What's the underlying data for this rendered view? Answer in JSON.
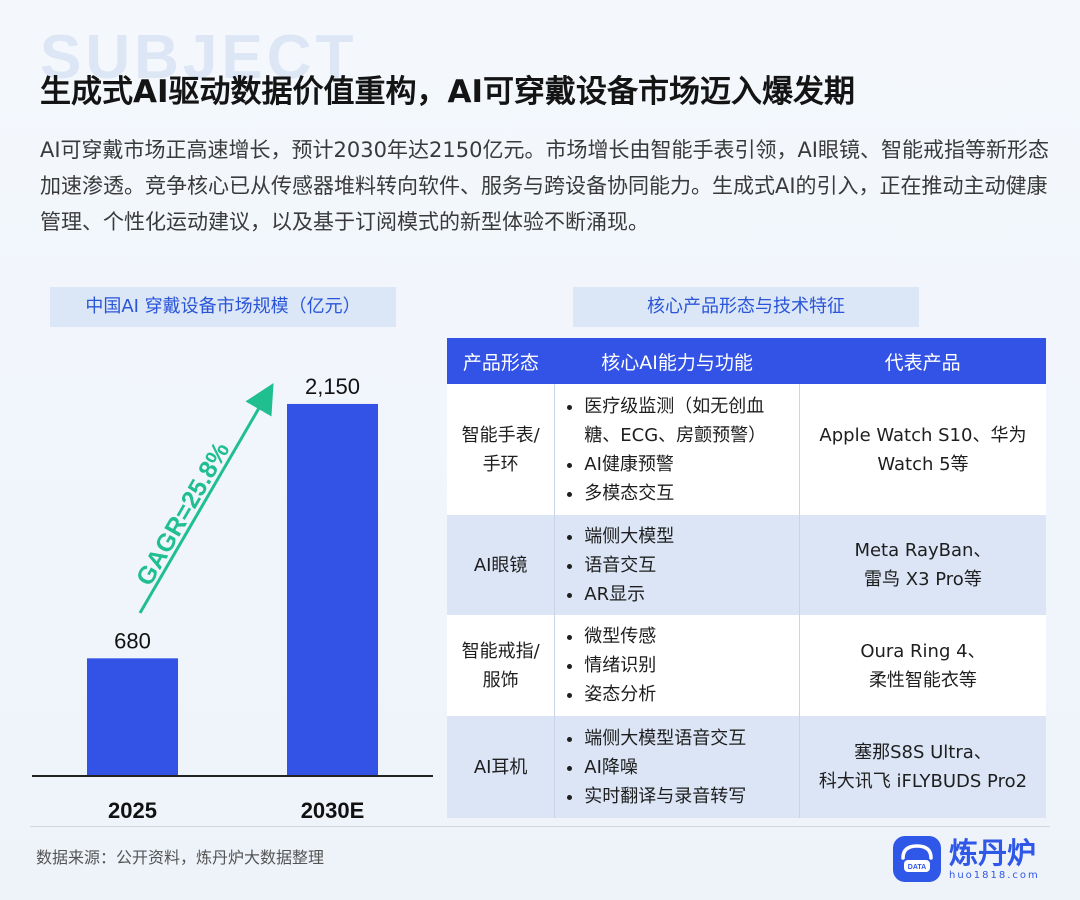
{
  "watermark": "SUBJECT",
  "title": "生成式AI驱动数据价值重构，AI可穿戴设备市场迈入爆发期",
  "description": "AI可穿戴市场正高速增长，预计2030年达2150亿元。市场增长由智能手表引领，AI眼镜、智能戒指等新形态加速渗透。竞争核心已从传感器堆料转向软件、服务与跨设备协同能力。生成式AI的引入，正在推动主动健康管理、个性化运动建议，以及基于订阅模式的新型体验不断涌现。",
  "chart_section_label": "中国AI 穿戴设备市场规模（亿元）",
  "table_section_label": "核心产品形态与技术特征",
  "chart_data": {
    "type": "bar",
    "title": "中国AI 穿戴设备市场规模（亿元）",
    "categories": [
      "2025",
      "2030E"
    ],
    "values": [
      680,
      2150
    ],
    "value_labels": [
      "680",
      "2,150"
    ],
    "annotation": "GAGR=25.8%",
    "bar_color": "#3352e6",
    "arrow_color": "#1fbf8f",
    "ylim": [
      0,
      2300
    ]
  },
  "table": {
    "headers": [
      "产品形态",
      "核心AI能力与功能",
      "代表产品"
    ],
    "rows": [
      {
        "form": "智能手表/\n手环",
        "features": [
          "医疗级监测（如无创血糖、ECG、房颤预警）",
          "AI健康预警",
          "多模态交互"
        ],
        "products": "Apple Watch S10、华为Watch 5等"
      },
      {
        "form": "AI眼镜",
        "features": [
          "端侧大模型",
          "语音交互",
          "AR显示"
        ],
        "products": "Meta RayBan、\n雷鸟 X3 Pro等"
      },
      {
        "form": "智能戒指/\n服饰",
        "features": [
          "微型传感",
          "情绪识别",
          "姿态分析"
        ],
        "products": "Oura Ring 4、\n柔性智能衣等"
      },
      {
        "form": "AI耳机",
        "features": [
          "端侧大模型语音交互",
          "AI降噪",
          "实时翻译与录音转写"
        ],
        "products": "塞那S8S Ultra、\n科大讯飞 iFLYBUDS Pro2"
      }
    ]
  },
  "source": "数据来源：公开资料，炼丹炉大数据整理",
  "logo": {
    "name": "炼丹炉",
    "url": "huo1818.com",
    "badge": "DATA"
  },
  "colors": {
    "accent": "#3352e6",
    "header_bg": "#3352e6",
    "label_bg": "#dbe6f7"
  }
}
